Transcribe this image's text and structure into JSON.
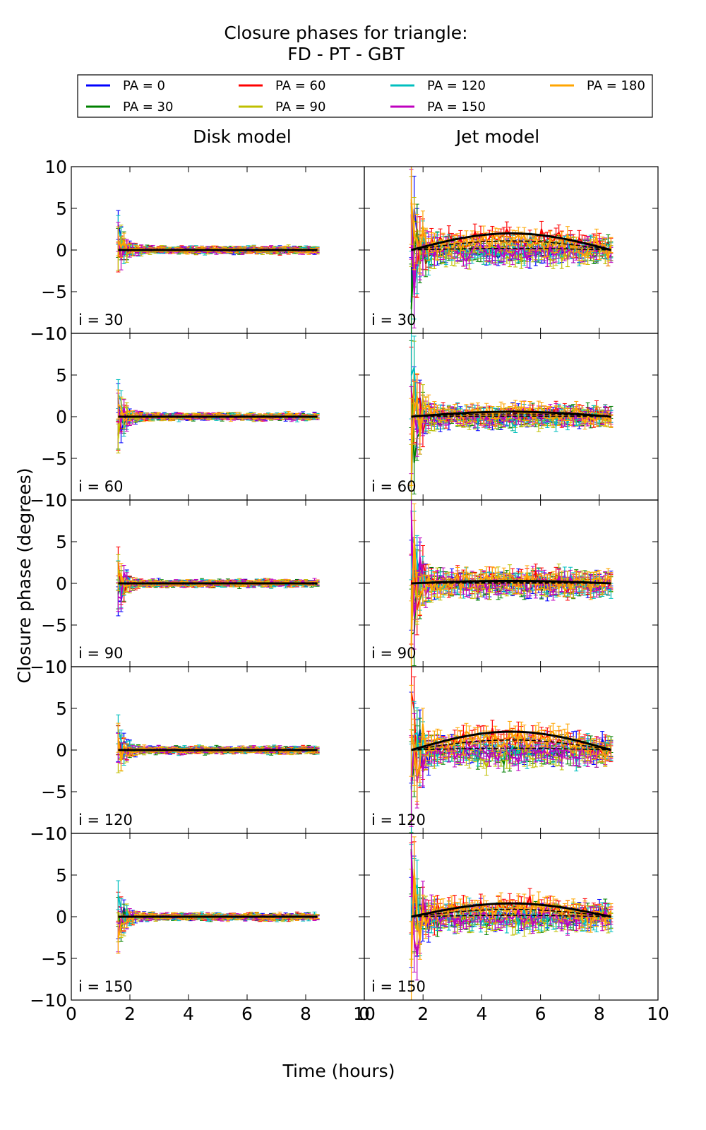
{
  "chart_data": {
    "type": "line",
    "title": "Closure phases for triangle:",
    "subtitle": "FD - PT - GBT",
    "xlabel": "Time (hours)",
    "ylabel": "Closure phase (degrees)",
    "xlim": [
      0,
      10
    ],
    "ylim": [
      -10,
      10
    ],
    "xticks": [
      "0",
      "2",
      "4",
      "6",
      "8",
      "10"
    ],
    "yticks": [
      "10",
      "5",
      "0",
      "−5",
      "−10"
    ],
    "column_titles": [
      "Disk model",
      "Jet model"
    ],
    "row_labels": [
      "i = 30",
      "i = 60",
      "i = 90",
      "i = 120",
      "i = 150"
    ],
    "time_range_hours": [
      1.6,
      8.4
    ],
    "legend_position": "top",
    "legend": [
      {
        "label": "PA = 0",
        "color": "#0000ff"
      },
      {
        "label": "PA = 30",
        "color": "#008000"
      },
      {
        "label": "PA = 60",
        "color": "#ff0000"
      },
      {
        "label": "PA = 90",
        "color": "#bfbf00"
      },
      {
        "label": "PA = 120",
        "color": "#00bfbf"
      },
      {
        "label": "PA = 150",
        "color": "#bf00bf"
      },
      {
        "label": "PA = 180",
        "color": "#ffa500"
      }
    ],
    "model_curve_color": "#000000",
    "panels": {
      "disk": {
        "approx_trend_degrees": [
          [
            1.6,
            0.0
          ],
          [
            5.0,
            -0.1
          ],
          [
            8.4,
            0.0
          ]
        ],
        "scatter_amplitude_degrees": 0.4,
        "initial_spike_degrees": 3.0
      },
      "jet": [
        {
          "inclination": "i = 30",
          "trend_peak_degrees": 2.0,
          "scatter_amplitude_degrees": 1.5
        },
        {
          "inclination": "i = 60",
          "trend_peak_degrees": 0.6,
          "scatter_amplitude_degrees": 1.2
        },
        {
          "inclination": "i = 90",
          "trend_peak_degrees": 0.3,
          "scatter_amplitude_degrees": 1.5
        },
        {
          "inclination": "i = 120",
          "trend_peak_degrees": 2.2,
          "scatter_amplitude_degrees": 1.6
        },
        {
          "inclination": "i = 150",
          "trend_peak_degrees": 1.6,
          "scatter_amplitude_degrees": 1.5
        }
      ]
    }
  }
}
